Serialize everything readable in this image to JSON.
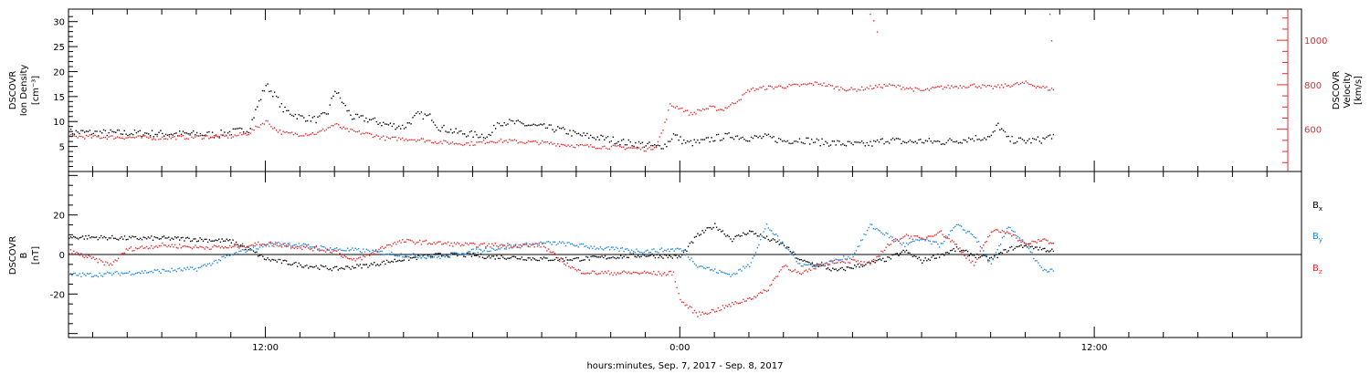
{
  "xaxis": {
    "label": "hours:minutes, Sep.  7, 2017 - Sep.  8, 2017",
    "range_hours": [
      6.3,
      42.0
    ],
    "major_ticks": [
      {
        "hour": 12,
        "label": "12:00"
      },
      {
        "hour": 24,
        "label": "0:00"
      },
      {
        "hour": 36,
        "label": "12:00"
      }
    ]
  },
  "colors": {
    "black": "#000000",
    "red": "#e8282a",
    "blue": "#1e88e0"
  },
  "chart_data": [
    {
      "type": "scatter",
      "panel": "top",
      "ylabel": [
        "DSCOVR",
        "Ion Density",
        "[cm⁻³]"
      ],
      "ylabel2": [
        "DSCOVR",
        "Velocity",
        "[km/s]"
      ],
      "ylim": [
        0,
        32.5
      ],
      "ylim2": [
        410,
        1140
      ],
      "yticks": [
        5,
        10,
        15,
        20,
        25,
        30
      ],
      "yticks2": [
        600,
        800,
        1000
      ],
      "series": [
        {
          "axis": "left",
          "color": "#000000",
          "points": [
            [
              6.3,
              8
            ],
            [
              7,
              7.9
            ],
            [
              8,
              7.8
            ],
            [
              9,
              7.7
            ],
            [
              10,
              7.6
            ],
            [
              10.5,
              7.5
            ],
            [
              11,
              8
            ],
            [
              11.5,
              8.5
            ],
            [
              11.8,
              14
            ],
            [
              12,
              17.5
            ],
            [
              12.3,
              15
            ],
            [
              12.5,
              12.5
            ],
            [
              13,
              11
            ],
            [
              13.5,
              10.5
            ],
            [
              13.8,
              12
            ],
            [
              14,
              16.5
            ],
            [
              14.3,
              13
            ],
            [
              14.5,
              11
            ],
            [
              15,
              10.5
            ],
            [
              15.5,
              9.5
            ],
            [
              16,
              9
            ],
            [
              16.4,
              11.5
            ],
            [
              16.8,
              11
            ],
            [
              17,
              9
            ],
            [
              17.5,
              8
            ],
            [
              18,
              7.5
            ],
            [
              18.5,
              7.3
            ],
            [
              18.7,
              10
            ],
            [
              19,
              10
            ],
            [
              19.5,
              9.5
            ],
            [
              20,
              9
            ],
            [
              20.5,
              8.5
            ],
            [
              21,
              7.5
            ],
            [
              21.5,
              7
            ],
            [
              22,
              6.5
            ],
            [
              22.5,
              5.8
            ],
            [
              23,
              5.5
            ],
            [
              23.3,
              5
            ],
            [
              23.6,
              5.5
            ],
            [
              23.8,
              7.5
            ],
            [
              24,
              6.5
            ],
            [
              24.2,
              5.8
            ],
            [
              24.6,
              6
            ],
            [
              25,
              6.8
            ],
            [
              25.5,
              7.3
            ],
            [
              26,
              6.8
            ],
            [
              26.5,
              7
            ],
            [
              27,
              6.2
            ],
            [
              27.5,
              6.5
            ],
            [
              28,
              6
            ],
            [
              28.5,
              5.8
            ],
            [
              29,
              5.5
            ],
            [
              29.5,
              5.6
            ],
            [
              30,
              6.5
            ],
            [
              30.5,
              6
            ],
            [
              31,
              6.2
            ],
            [
              31.5,
              6
            ],
            [
              32,
              6.3
            ],
            [
              32.5,
              6.8
            ],
            [
              33,
              7
            ],
            [
              33.2,
              9.5
            ],
            [
              33.5,
              6.5
            ],
            [
              34,
              6.2
            ],
            [
              34.5,
              6.5
            ],
            [
              34.8,
              7.5
            ]
          ]
        },
        {
          "axis": "right",
          "color": "#e8282a",
          "points": [
            [
              6.3,
              570
            ],
            [
              7,
              568
            ],
            [
              8,
              566
            ],
            [
              9,
              564
            ],
            [
              10,
              568
            ],
            [
              11,
              570
            ],
            [
              11.5,
              585
            ],
            [
              12,
              640
            ],
            [
              12.3,
              600
            ],
            [
              12.5,
              585
            ],
            [
              13,
              580
            ],
            [
              13.5,
              585
            ],
            [
              14,
              625
            ],
            [
              14.3,
              600
            ],
            [
              14.6,
              590
            ],
            [
              15,
              580
            ],
            [
              15.5,
              560
            ],
            [
              16,
              560
            ],
            [
              16.5,
              555
            ],
            [
              17,
              545
            ],
            [
              17.5,
              540
            ],
            [
              18,
              538
            ],
            [
              18.5,
              550
            ],
            [
              19,
              550
            ],
            [
              19.5,
              545
            ],
            [
              20,
              542
            ],
            [
              20.5,
              535
            ],
            [
              21,
              528
            ],
            [
              21.5,
              525
            ],
            [
              22,
              522
            ],
            [
              22.5,
              520
            ],
            [
              22.8,
              515
            ],
            [
              23.1,
              512
            ],
            [
              23.3,
              530
            ],
            [
              23.5,
              600
            ],
            [
              23.7,
              710
            ],
            [
              24,
              700
            ],
            [
              24.3,
              670
            ],
            [
              24.6,
              690
            ],
            [
              24.9,
              700
            ],
            [
              25.2,
              690
            ],
            [
              25.5,
              715
            ],
            [
              25.8,
              750
            ],
            [
              26,
              780
            ],
            [
              26.5,
              790
            ],
            [
              27,
              795
            ],
            [
              27.5,
              800
            ],
            [
              28,
              810
            ],
            [
              28.5,
              790
            ],
            [
              29,
              780
            ],
            [
              29.5,
              790
            ],
            [
              30,
              800
            ],
            [
              30.5,
              790
            ],
            [
              31,
              775
            ],
            [
              31.5,
              790
            ],
            [
              32,
              795
            ],
            [
              32.5,
              800
            ],
            [
              33,
              790
            ],
            [
              33.5,
              800
            ],
            [
              34,
              810
            ],
            [
              34.5,
              790
            ],
            [
              34.8,
              780
            ]
          ]
        },
        {
          "axis": "right",
          "color": "#e8282a",
          "points": [
            [
              29.5,
              1120
            ],
            [
              29.6,
              1090
            ],
            [
              29.7,
              1040
            ],
            [
              34.7,
              1120
            ],
            [
              34.75,
              1000
            ]
          ]
        }
      ]
    },
    {
      "type": "scatter",
      "panel": "bottom",
      "ylabel": [
        "DSCOVR",
        "B",
        "[nT]"
      ],
      "ylim": [
        -42,
        42
      ],
      "yticks": [
        -20,
        0,
        20
      ],
      "legend": [
        {
          "label": "B",
          "sub": "x",
          "color": "#000000"
        },
        {
          "label": "B",
          "sub": "y",
          "color": "#1e88e0"
        },
        {
          "label": "B",
          "sub": "z",
          "color": "#e8282a"
        }
      ],
      "series": [
        {
          "name": "Bx",
          "color": "#000000",
          "points": [
            [
              6.3,
              9
            ],
            [
              7,
              9
            ],
            [
              8,
              8.5
            ],
            [
              9,
              8.5
            ],
            [
              10,
              8
            ],
            [
              11,
              7
            ],
            [
              11.5,
              3
            ],
            [
              12,
              -2
            ],
            [
              13,
              -5
            ],
            [
              14,
              -7
            ],
            [
              15,
              -5
            ],
            [
              16,
              -2
            ],
            [
              17,
              0
            ],
            [
              18,
              0
            ],
            [
              18.5,
              -1
            ],
            [
              19,
              -1
            ],
            [
              19.5,
              -1.5
            ],
            [
              20,
              -2
            ],
            [
              21,
              -2
            ],
            [
              22,
              -1
            ],
            [
              23,
              0
            ],
            [
              24,
              -1
            ],
            [
              24.5,
              10
            ],
            [
              25,
              15
            ],
            [
              25.5,
              8
            ],
            [
              26,
              12
            ],
            [
              27,
              5
            ],
            [
              27.5,
              -3
            ],
            [
              28,
              -5
            ],
            [
              28.5,
              -8
            ],
            [
              29,
              -6
            ],
            [
              29.5,
              -4
            ],
            [
              30,
              -2
            ],
            [
              30.5,
              2
            ],
            [
              31,
              -3
            ],
            [
              31.5,
              0
            ],
            [
              32,
              3
            ],
            [
              32.5,
              0
            ],
            [
              33,
              -2
            ],
            [
              33.5,
              3
            ],
            [
              34,
              5
            ],
            [
              34.5,
              3
            ],
            [
              34.8,
              2
            ]
          ]
        },
        {
          "name": "By",
          "color": "#1e88e0",
          "points": [
            [
              6.3,
              -10
            ],
            [
              7,
              -10
            ],
            [
              8,
              -9
            ],
            [
              9,
              -8
            ],
            [
              10,
              -7
            ],
            [
              11,
              0
            ],
            [
              11.5,
              3
            ],
            [
              12,
              5
            ],
            [
              12.5,
              6
            ],
            [
              13,
              5
            ],
            [
              14,
              3
            ],
            [
              15,
              2
            ],
            [
              16,
              0
            ],
            [
              17,
              -1
            ],
            [
              18,
              2
            ],
            [
              19,
              4
            ],
            [
              20,
              6
            ],
            [
              20.5,
              6
            ],
            [
              21,
              5
            ],
            [
              22,
              3
            ],
            [
              23,
              2
            ],
            [
              24,
              3
            ],
            [
              24.5,
              -5
            ],
            [
              25,
              -8
            ],
            [
              25.5,
              -10
            ],
            [
              26,
              -5
            ],
            [
              26.5,
              15
            ],
            [
              27,
              5
            ],
            [
              27.5,
              -5
            ],
            [
              28,
              -5
            ],
            [
              28.5,
              -3
            ],
            [
              29,
              0
            ],
            [
              29.5,
              15
            ],
            [
              30,
              10
            ],
            [
              30.5,
              5
            ],
            [
              31,
              8
            ],
            [
              31.5,
              5
            ],
            [
              32,
              15
            ],
            [
              32.5,
              10
            ],
            [
              33,
              -5
            ],
            [
              33.5,
              15
            ],
            [
              34,
              5
            ],
            [
              34.5,
              -8
            ],
            [
              34.8,
              -8
            ]
          ]
        },
        {
          "name": "Bz",
          "color": "#e8282a",
          "points": [
            [
              6.3,
              2
            ],
            [
              7,
              -2
            ],
            [
              7.5,
              -5
            ],
            [
              8,
              3
            ],
            [
              9,
              5
            ],
            [
              10,
              4
            ],
            [
              11,
              4
            ],
            [
              11.5,
              5
            ],
            [
              12,
              6
            ],
            [
              12.5,
              5
            ],
            [
              13,
              4
            ],
            [
              14,
              2
            ],
            [
              14.5,
              -3
            ],
            [
              15,
              0
            ],
            [
              15.5,
              5
            ],
            [
              16,
              7
            ],
            [
              17,
              6
            ],
            [
              18,
              5
            ],
            [
              19,
              5
            ],
            [
              20,
              5
            ],
            [
              20.5,
              -2
            ],
            [
              21,
              -8
            ],
            [
              21.5,
              -9
            ],
            [
              22,
              -9
            ],
            [
              23,
              -9
            ],
            [
              23.5,
              -9.5
            ],
            [
              23.8,
              -9
            ],
            [
              24,
              -23
            ],
            [
              24.5,
              -30
            ],
            [
              25,
              -28
            ],
            [
              25.5,
              -25
            ],
            [
              26,
              -22
            ],
            [
              26.5,
              -18
            ],
            [
              27,
              -5
            ],
            [
              27.5,
              -10
            ],
            [
              28,
              -5
            ],
            [
              28.5,
              -3
            ],
            [
              29,
              -3
            ],
            [
              29.5,
              -5
            ],
            [
              30,
              5
            ],
            [
              30.5,
              10
            ],
            [
              31,
              8
            ],
            [
              31.5,
              12
            ],
            [
              32,
              5
            ],
            [
              32.5,
              -5
            ],
            [
              33,
              12
            ],
            [
              33.5,
              12
            ],
            [
              34,
              5
            ],
            [
              34.5,
              8
            ],
            [
              34.8,
              6
            ]
          ]
        }
      ]
    }
  ]
}
